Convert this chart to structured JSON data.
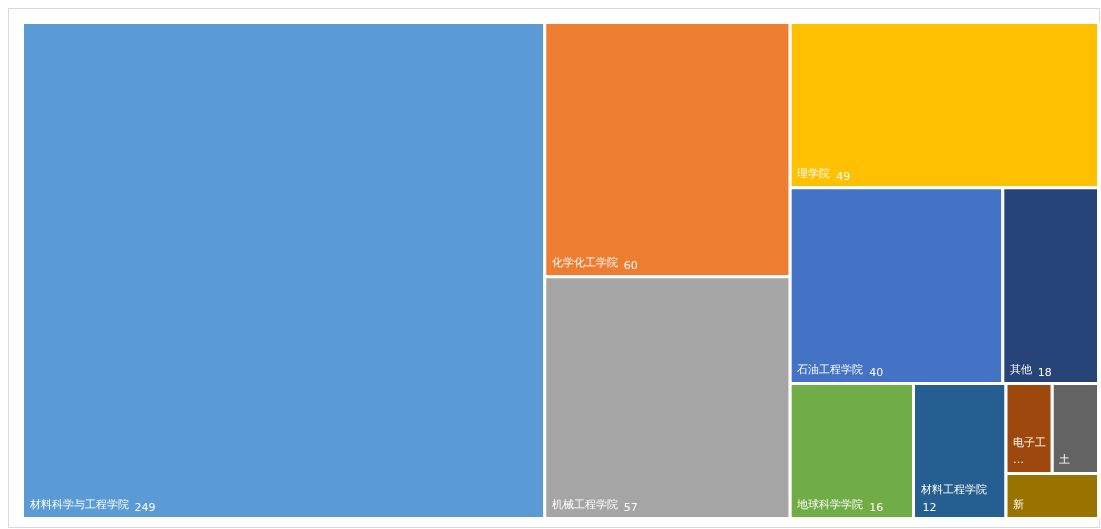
{
  "chart_data": {
    "type": "other",
    "data_labels": true,
    "categories": [
      "材料科学与工程学院",
      "化学化工学院",
      "机械工程学院",
      "理学院",
      "石油工程学院",
      "其他",
      "地球科学学院",
      "材料工程学院",
      "电子工…",
      "土",
      "新"
    ],
    "values": [
      249,
      60,
      57,
      49,
      40,
      18,
      16,
      12,
      null,
      null,
      null
    ],
    "colors": [
      "#5b9bd5",
      "#ed7d31",
      "#a5a5a5",
      "#ffc000",
      "#4472c4",
      "#264478",
      "#70ad47",
      "#255e91",
      "#9e480e",
      "#636363",
      "#997300"
    ]
  }
}
